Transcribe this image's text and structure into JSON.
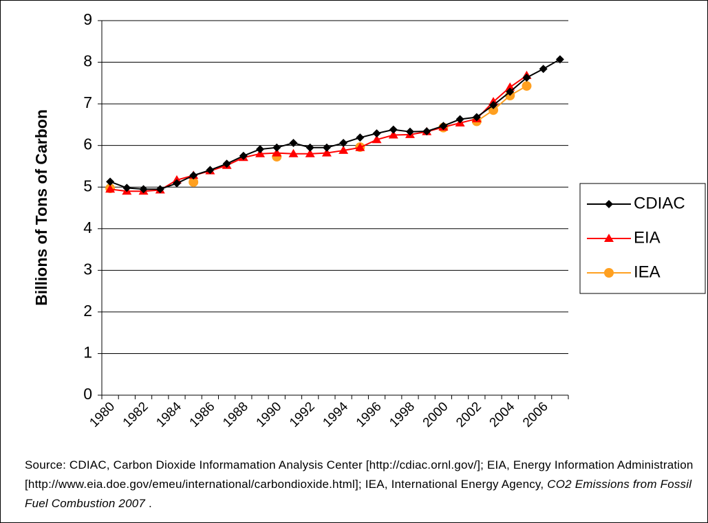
{
  "chart_data": {
    "type": "line",
    "y_label": "Billions of Tons of Carbon",
    "categories": [
      "1980",
      null,
      "1982",
      null,
      "1984",
      null,
      "1986",
      null,
      "1988",
      null,
      "1990",
      null,
      "1992",
      null,
      "1994",
      null,
      "1996",
      null,
      "1998",
      null,
      "2000",
      null,
      "2002",
      null,
      "2004",
      null,
      "2006",
      null
    ],
    "series": [
      {
        "name": "CDIAC",
        "color": "#000000",
        "marker": "diamond",
        "values": [
          5.13,
          4.98,
          4.95,
          4.95,
          5.09,
          5.28,
          5.41,
          5.56,
          5.75,
          5.91,
          5.95,
          6.06,
          5.95,
          5.95,
          6.06,
          6.19,
          6.29,
          6.38,
          6.33,
          6.34,
          6.47,
          6.63,
          6.68,
          6.97,
          7.29,
          7.63,
          7.84,
          8.07
        ]
      },
      {
        "name": "EIA",
        "color": "#ff0000",
        "marker": "triangle",
        "values": [
          4.95,
          4.9,
          4.9,
          4.93,
          5.17,
          5.28,
          5.39,
          5.52,
          5.71,
          5.8,
          5.82,
          5.8,
          5.8,
          5.82,
          5.88,
          5.95,
          6.14,
          6.25,
          6.26,
          6.33,
          6.44,
          6.54,
          6.64,
          7.05,
          7.4,
          7.68,
          null,
          null
        ]
      },
      {
        "name": "IEA",
        "color": "#ffa020",
        "marker": "circle",
        "values": [
          4.97,
          null,
          null,
          null,
          null,
          5.12,
          null,
          null,
          null,
          null,
          5.73,
          null,
          null,
          null,
          null,
          5.96,
          null,
          null,
          null,
          null,
          6.43,
          null,
          6.58,
          6.85,
          7.2,
          7.43,
          null,
          null
        ]
      }
    ],
    "ylim": [
      0,
      9
    ],
    "yticks": [
      0,
      1,
      2,
      3,
      4,
      5,
      6,
      7,
      8,
      9
    ],
    "grid": true,
    "legend": "right"
  },
  "source": {
    "text": "Source: CDIAC, Carbon Dioxide Informamation Analysis Center [http://cdiac.ornl.gov/]; EIA, Energy Information Administration [http://www.eia.doe.gov/emeu/international/carbondioxide.html]; IEA, International Energy Agency, ",
    "title": "CO2 Emissions from Fossil Fuel Combustion 2007",
    "end": " ."
  }
}
